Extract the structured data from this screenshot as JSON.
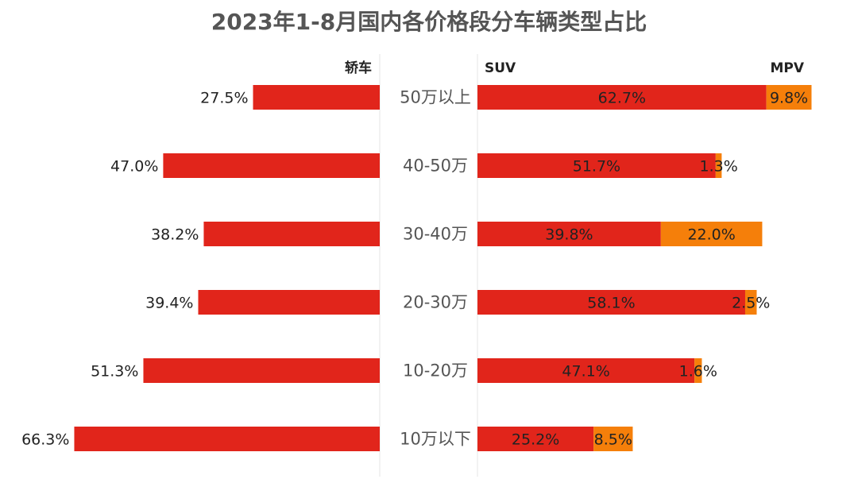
{
  "chart_data": {
    "type": "bar",
    "title": "2023年1-8月国内各价格段分车辆类型占比",
    "categories": [
      "50万以上",
      "40-50万",
      "30-40万",
      "20-30万",
      "10-20万",
      "10万以下"
    ],
    "series": [
      {
        "name": "轿车",
        "values": [
          27.5,
          47.0,
          38.2,
          39.4,
          51.3,
          66.3
        ],
        "labels": [
          "27.5%",
          "47.0%",
          "38.2%",
          "39.4%",
          "51.3%",
          "66.3%"
        ]
      },
      {
        "name": "SUV",
        "values": [
          62.7,
          51.7,
          39.8,
          58.1,
          47.1,
          25.2
        ],
        "labels": [
          "62.7%",
          "51.7%",
          "39.8%",
          "58.1%",
          "47.1%",
          "25.2%"
        ]
      },
      {
        "name": "MPV",
        "values": [
          9.8,
          1.3,
          22.0,
          2.5,
          1.6,
          8.5
        ],
        "labels": [
          "9.8%",
          "1.3%",
          "22.0%",
          "2.5%",
          "1.6%",
          "8.5%"
        ]
      }
    ],
    "colors": {
      "轿车": "#e1251b",
      "SUV": "#e1251b",
      "MPV": "#f57f0a"
    },
    "grid": false,
    "legend": "top"
  }
}
